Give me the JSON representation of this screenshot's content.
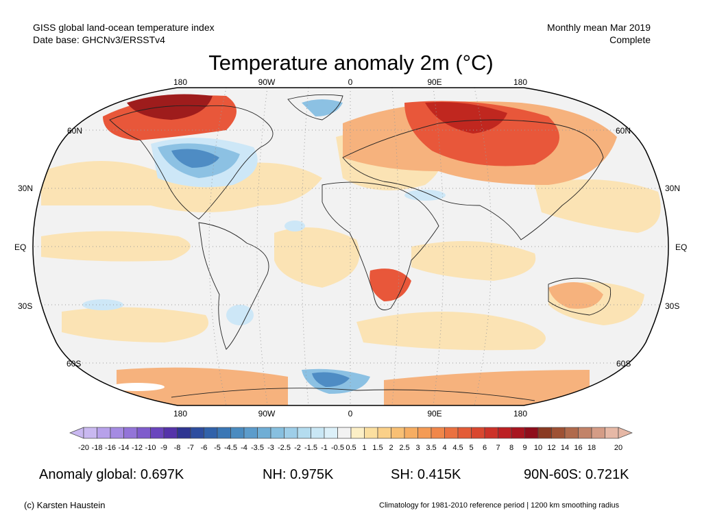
{
  "header": {
    "left_line1": "GISS global land-ocean temperature index",
    "left_line2": "Date base: GHCNv3/ERSSTv4",
    "right_line1": "Monthly mean Mar 2019",
    "right_line2": "Complete"
  },
  "title": "Temperature anomaly 2m (°C)",
  "map": {
    "projection": "Robinson",
    "top_longitude_labels": [
      "180",
      "90W",
      "0",
      "90E",
      "180"
    ],
    "bottom_longitude_labels": [
      "180",
      "90W",
      "0",
      "90E",
      "180"
    ],
    "left_latitude_labels": [
      "60N",
      "30N",
      "EQ",
      "30S",
      "60S"
    ],
    "right_latitude_labels": [
      "60N",
      "30N",
      "EQ",
      "30S",
      "60S"
    ],
    "colors": {
      "background_neutral": "#f2f2f2",
      "warm_light": "#fbe3b4",
      "warm_mid": "#f6b27d",
      "warm_strong": "#e8573a",
      "warm_extreme": "#9e1c1c",
      "cool_light": "#cde7f7",
      "cool_mid": "#8cc1e3",
      "cool_strong": "#4e8cc4"
    }
  },
  "colorbar": {
    "ticks": [
      "-20",
      "-18",
      "-16",
      "-14",
      "-12",
      "-10",
      "-9",
      "-8",
      "-7",
      "-6",
      "-5",
      "-4.5",
      "-4",
      "-3.5",
      "-3",
      "-2.5",
      "-2",
      "-1.5",
      "-1",
      "-0.5",
      "0.5",
      "1",
      "1.5",
      "2",
      "2.5",
      "3",
      "3.5",
      "4",
      "4.5",
      "5",
      "6",
      "7",
      "8",
      "9",
      "10",
      "12",
      "14",
      "16",
      "18",
      "20"
    ],
    "colors": [
      "#c9b8f0",
      "#b7a1ea",
      "#a58be2",
      "#9374d8",
      "#7f5ccc",
      "#6a45bd",
      "#5533a9",
      "#2f3592",
      "#2e4d9f",
      "#3162aa",
      "#3a77b5",
      "#4a8bc0",
      "#5c9ccb",
      "#70aed5",
      "#87bfdf",
      "#9ecee8",
      "#b4dcef",
      "#c9e7f5",
      "#dcf0f9",
      "#f2f2f2",
      "#fcefc6",
      "#fbdfa0",
      "#fad089",
      "#f8bf74",
      "#f6ad62",
      "#f49b55",
      "#f0874a",
      "#ea7140",
      "#e35c37",
      "#d9472f",
      "#cc3228",
      "#bc2023",
      "#a8151f",
      "#8f0d1b",
      "#8a3a22",
      "#9e5134",
      "#b06a4c",
      "#c28368",
      "#d49c86",
      "#e6b8a6"
    ]
  },
  "stats": {
    "global": "Anomaly global: 0.697K",
    "nh": "NH: 0.975K",
    "sh": "SH: 0.415K",
    "arctic": "90N-60S: 0.721K"
  },
  "footer": {
    "credit": "(c) Karsten Haustein",
    "note": "Climatology for 1981-2010 reference period | 1200 km smoothing radius"
  }
}
